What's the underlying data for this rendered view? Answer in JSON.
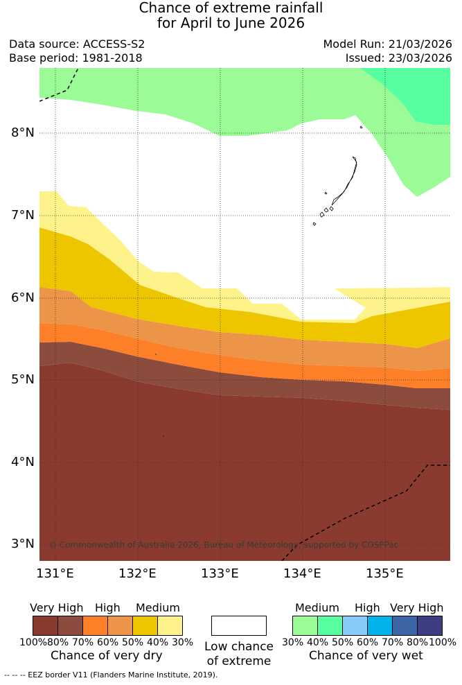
{
  "title_line1": "Chance of extreme rainfall",
  "title_line2": "for April to June 2026",
  "data_source": "Data source: ACCESS-S2",
  "base_period": "Base period: 1981-2018",
  "model_run": "Model Run: 21/03/2026",
  "issued": "Issued: 23/03/2026",
  "lat_labels": [
    "8°N",
    "7°N",
    "6°N",
    "5°N",
    "4°N",
    "3°N"
  ],
  "lon_labels": [
    "131°E",
    "132°E",
    "133°E",
    "134°E",
    "135°E"
  ],
  "copyright": "© Commonwealth of Australia 2026, Bureau of Meteorology, supported by COSPPac",
  "legend_dry": {
    "cat_very_high": "Very High",
    "cat_high": "High",
    "cat_medium": "Medium",
    "ticks": [
      "100%",
      "80%",
      "70%",
      "60%",
      "50%",
      "40%",
      "30%"
    ],
    "colors": [
      "#8b3a30",
      "#8b4c3e",
      "#fd7f27",
      "#ec9548",
      "#eec600",
      "#fef38a"
    ],
    "caption": "Chance of very dry"
  },
  "legend_low": {
    "line1": "Low chance",
    "line2": "of extreme"
  },
  "legend_wet": {
    "cat_medium": "Medium",
    "cat_high": "High",
    "cat_very_high": "Very High",
    "ticks": [
      "30%",
      "40%",
      "50%",
      "60%",
      "70%",
      "80%",
      "100%"
    ],
    "colors": [
      "#9bfb97",
      "#58ffa1",
      "#87cbfa",
      "#02b2ea",
      "#3c65a6",
      "#3c3d82"
    ],
    "caption": "Chance of very wet"
  },
  "eez_note": "-- -- -- EEZ border V11 (Flanders Marine Institute, 2019)."
}
